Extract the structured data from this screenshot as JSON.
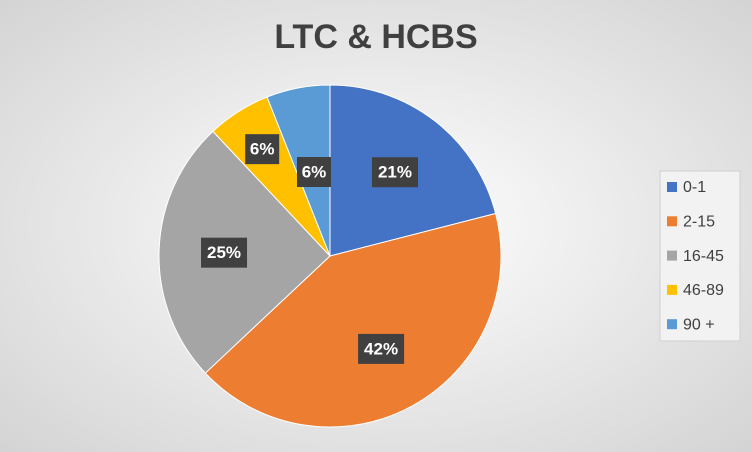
{
  "chart_data": {
    "type": "pie",
    "title": "LTC & HCBS",
    "categories": [
      "0-1",
      "2-15",
      "16-45",
      "46-89",
      "90 +"
    ],
    "values": [
      21,
      42,
      25,
      6,
      6
    ],
    "value_labels": [
      "21%",
      "42%",
      "25%",
      "6%",
      "6%"
    ],
    "colors": [
      "#4472c4",
      "#ed7d31",
      "#a5a5a5",
      "#ffc000",
      "#5b9bd5"
    ],
    "legend": "right"
  }
}
